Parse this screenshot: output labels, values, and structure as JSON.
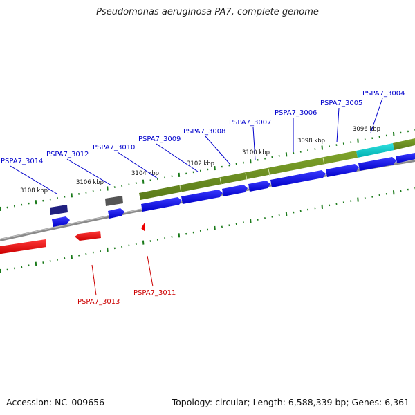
{
  "title": "Pseudomonas aeruginosa PA7, complete genome",
  "footer": {
    "accession": "Accession: NC_009656",
    "summary": "Topology: circular; Length: 6,588,339 bp; Genes: 6,361"
  },
  "colors": {
    "backbone": "#8a8a8a",
    "forward_cds": "#0000ee",
    "reverse_cds": "#ee0000",
    "gene_band": "#6b8e23",
    "highlight_gene": "#00c8c8",
    "other_gene": "#202080",
    "grey_gene": "#555555",
    "tick": "#1a7a1a",
    "label_forward": "#0000cc",
    "label_reverse": "#cc0000"
  },
  "scale_labels": [
    "3108 kbp",
    "3106 kbp",
    "3104 kbp",
    "3102 kbp",
    "3100 kbp",
    "3098 kbp",
    "3096 kbp"
  ],
  "forward_labels": [
    "PSPA7_3014",
    "PSPA7_3012",
    "PSPA7_3010",
    "PSPA7_3009",
    "PSPA7_3008",
    "PSPA7_3007",
    "PSPA7_3006",
    "PSPA7_3005",
    "PSPA7_3004"
  ],
  "reverse_labels": [
    "PSPA7_3013",
    "PSPA7_3011"
  ]
}
